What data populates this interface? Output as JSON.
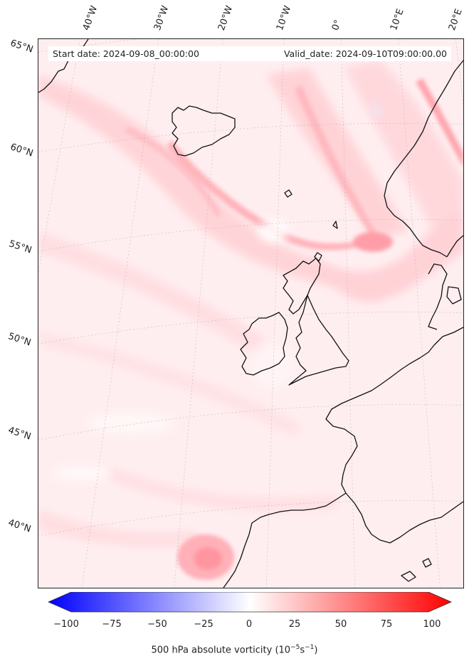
{
  "map": {
    "start_label": "Start date: 2024-09-08_00:00:00",
    "valid_label": "Valid_date: 2024-09-10T09:00:00.00",
    "lon_labels": [
      "40°W",
      "30°W",
      "20°W",
      "10°W",
      "0°",
      "10°E",
      "20°E"
    ],
    "lat_labels": [
      "65°N",
      "60°N",
      "55°N",
      "50°N",
      "45°N",
      "40°N"
    ]
  },
  "colorbar": {
    "label_prefix": "500 hPa absolute vorticity (10",
    "label_exp1": "−5",
    "label_mid": "s",
    "label_exp2": "−1",
    "label_suffix": ")",
    "ticks": [
      "−100",
      "−75",
      "−50",
      "−25",
      "0",
      "25",
      "50",
      "75",
      "100"
    ],
    "min": -100,
    "max": 100,
    "colors": {
      "negative": "#0000ff",
      "zero": "#ffffff",
      "positive": "#ff0000"
    }
  }
}
